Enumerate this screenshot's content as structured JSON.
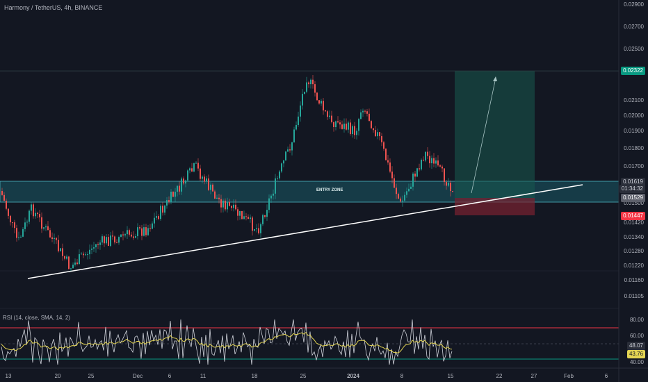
{
  "header": {
    "title": "Harmony / TetherUS, 4h, BINANCE",
    "rsi_label": "RSI (14, close, SMA, 14, 2)"
  },
  "annotations": {
    "entry_zone": "ENTRY ZONE"
  },
  "price_axis": {
    "labels": [
      "0.02900",
      "0.02700",
      "0.02500",
      "0.02100",
      "0.02000",
      "0.01900",
      "0.01800",
      "0.01700",
      "0.01500",
      "0.01420",
      "0.01340",
      "0.01280",
      "0.01220",
      "0.01160",
      "0.01105"
    ]
  },
  "price_tags": {
    "target": "0.02322",
    "current": "0.01619",
    "countdown": "01:34:32",
    "entry": "0.01529",
    "stop": "0.01447"
  },
  "rsi_axis": {
    "labels": [
      "80.00",
      "60.00",
      "40.00"
    ],
    "tag_rsi": "48.07",
    "tag_sma": "43.76"
  },
  "time_axis": {
    "labels": [
      "13",
      "20",
      "25",
      "Dec",
      "6",
      "11",
      "18",
      "25",
      "2024",
      "8",
      "15",
      "22",
      "27",
      "Feb",
      "6"
    ]
  },
  "colors": {
    "background": "#131722",
    "up": "#26a69a",
    "down": "#ef5350",
    "zone": "#1a5a66",
    "target_tag": "#089981",
    "stop_tag": "#f23645",
    "rsi_line": "#d1d4dc",
    "rsi_sma": "#e3d453"
  }
}
